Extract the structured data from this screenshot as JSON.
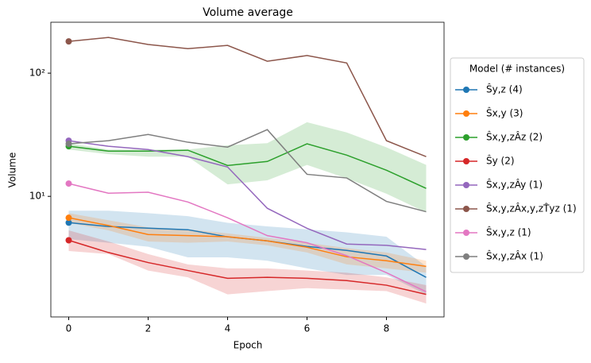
{
  "chart_data": {
    "type": "line",
    "title": "Volume average",
    "x_label": "Epoch",
    "y_label": "Volume",
    "x": [
      0,
      1,
      2,
      3,
      4,
      5,
      6,
      7,
      8,
      9
    ],
    "xlim": [
      -0.45,
      9.45
    ],
    "xticks": [
      0,
      2,
      4,
      6,
      8
    ],
    "ylim": [
      1.05,
      259
    ],
    "yticks": [
      {
        "value": 10,
        "label": "10¹"
      },
      {
        "value": 100,
        "label": "10²"
      }
    ],
    "log_y": true,
    "grid": false,
    "legend_position": "right",
    "legend_title": "Model (# instances)",
    "series": [
      {
        "name": "Ŝy,z (4)",
        "color": "#1f77b4",
        "values": [
          6.12,
          5.69,
          5.52,
          5.36,
          4.69,
          4.35,
          3.92,
          3.64,
          3.28,
          2.2
        ],
        "upper": [
          7.65,
          7.65,
          7.3,
          6.9,
          6.1,
          5.7,
          5.4,
          5.1,
          4.7,
          2.7
        ],
        "lower": [
          4.5,
          4.2,
          3.9,
          3.2,
          3.2,
          3.0,
          2.6,
          2.3,
          2.3,
          1.6
        ]
      },
      {
        "name": "Ŝx,y (3)",
        "color": "#ff7f0e",
        "values": [
          6.7,
          5.8,
          4.9,
          4.8,
          4.7,
          4.35,
          3.86,
          3.23,
          3.0,
          2.7
        ],
        "upper": [
          7.3,
          6.4,
          5.6,
          5.4,
          5.0,
          4.6,
          4.2,
          3.8,
          3.5,
          3.0
        ],
        "lower": [
          6.1,
          5.3,
          4.3,
          4.2,
          4.3,
          4.0,
          3.5,
          2.8,
          2.6,
          2.4
        ]
      },
      {
        "name": "Ŝx,y,zÂz (2)",
        "color": "#2ca02c",
        "values": [
          25.5,
          23.3,
          23.3,
          23.7,
          17.8,
          19.2,
          26.7,
          21.6,
          16.3,
          11.6
        ],
        "upper": [
          27,
          24,
          24,
          24,
          26,
          27,
          40,
          33,
          25,
          18
        ],
        "lower": [
          24,
          22,
          21,
          21,
          12.5,
          13.5,
          18,
          14,
          10.5,
          7.4
        ]
      },
      {
        "name": "Ŝy (2)",
        "color": "#d62728",
        "values": [
          4.4,
          3.5,
          2.9,
          2.5,
          2.16,
          2.2,
          2.16,
          2.07,
          1.9,
          1.6
        ],
        "upper": [
          5.3,
          4.3,
          3.4,
          2.8,
          2.6,
          2.6,
          2.5,
          2.4,
          2.2,
          1.9
        ],
        "lower": [
          3.6,
          3.4,
          2.5,
          2.2,
          1.6,
          1.7,
          1.8,
          1.75,
          1.7,
          1.35
        ]
      },
      {
        "name": "Ŝx,y,zÂy (1)",
        "color": "#9467bd",
        "values": [
          28.3,
          25.5,
          24.0,
          21.0,
          17.3,
          8.0,
          5.5,
          4.1,
          4.0,
          3.7
        ]
      },
      {
        "name": "Ŝx,y,zÂx,y,zT̂yz (1)",
        "color": "#8c564b",
        "values": [
          181,
          195,
          171,
          158,
          168,
          125,
          139,
          121,
          28.3,
          21.0
        ]
      },
      {
        "name": "Ŝx,y,z (1)",
        "color": "#e377c2",
        "values": [
          12.7,
          10.6,
          10.8,
          9.0,
          6.7,
          4.8,
          4.2,
          3.3,
          2.4,
          1.68
        ]
      },
      {
        "name": "Ŝx,y,zÂx (1)",
        "color": "#7f7f7f",
        "values": [
          26.7,
          28.3,
          31.8,
          27.5,
          25.1,
          34.8,
          15.1,
          14.1,
          9.1,
          7.5
        ]
      }
    ]
  }
}
